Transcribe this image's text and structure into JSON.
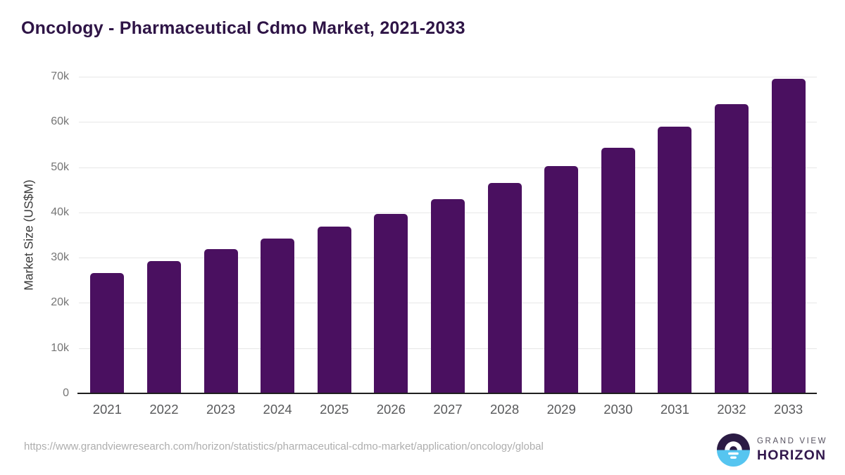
{
  "page": {
    "background": "#ffffff"
  },
  "header": {
    "title": "Oncology - Pharmaceutical Cdmo Market, 2021-2033",
    "title_color": "#2e1446"
  },
  "chart_data": {
    "type": "bar",
    "title": "Oncology - Pharmaceutical Cdmo Market, 2021-2033",
    "categories": [
      "2021",
      "2022",
      "2023",
      "2024",
      "2025",
      "2026",
      "2027",
      "2028",
      "2029",
      "2030",
      "2031",
      "2032",
      "2033"
    ],
    "values": [
      26600,
      29300,
      31900,
      34200,
      36800,
      39600,
      42900,
      46500,
      50200,
      54300,
      59000,
      63900,
      69600
    ],
    "xlabel": "",
    "ylabel": "Market Size (US$M)",
    "ylim": [
      0,
      70000
    ],
    "yticks": [
      {
        "label": "0",
        "value": 0
      },
      {
        "label": "10k",
        "value": 10000
      },
      {
        "label": "20k",
        "value": 20000
      },
      {
        "label": "30k",
        "value": 30000
      },
      {
        "label": "40k",
        "value": 40000
      },
      {
        "label": "50k",
        "value": 50000
      },
      {
        "label": "60k",
        "value": 60000
      },
      {
        "label": "70k",
        "value": 70000
      }
    ],
    "grid": "horizontal",
    "legend": "none",
    "bar_color": "#4a1060",
    "gridline_color": "#e7e7e7",
    "axis_line_color": "#1f1f1f"
  },
  "footer": {
    "source_url": "https://www.grandviewresearch.com/horizon/statistics/pharmaceutical-cdmo-market/application/oncology/global",
    "logo": {
      "top_text": "GRAND VIEW",
      "bottom_text": "HORIZON",
      "icon": "sun-over-water",
      "purple": "#2b1b44",
      "blue": "#56c5f0"
    }
  }
}
